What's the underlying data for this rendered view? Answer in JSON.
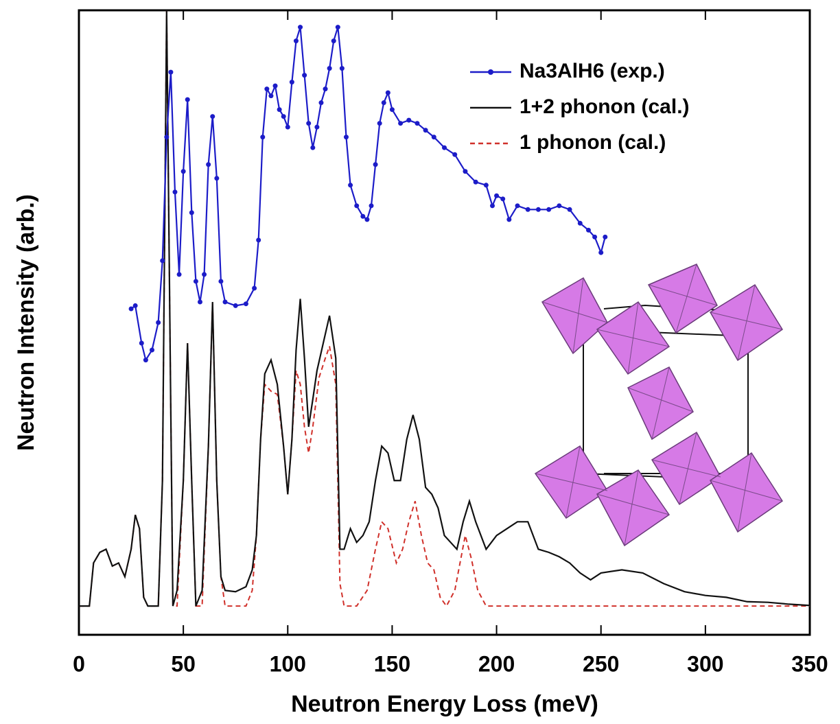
{
  "chart_data": {
    "type": "line",
    "x_label": "Neutron Energy Loss (meV)",
    "y_label": "Neutron Intensity (arb.)",
    "xlim": [
      0,
      350
    ],
    "xticks": [
      0,
      50,
      100,
      150,
      200,
      250,
      300,
      350
    ],
    "ylim": [
      0,
      100
    ],
    "legend": "upper right",
    "series": [
      {
        "name": "Na3AlH6 (exp.)",
        "color": "#1c1cc8",
        "style": "solid",
        "markers": true,
        "x": [
          25,
          27,
          30,
          32,
          35,
          38,
          40,
          42,
          44,
          46,
          48,
          50,
          52,
          54,
          56,
          58,
          60,
          62,
          64,
          66,
          68,
          70,
          75,
          80,
          84,
          86,
          88,
          90,
          92,
          94,
          96,
          98,
          100,
          102,
          104,
          106,
          108,
          110,
          112,
          114,
          116,
          118,
          120,
          122,
          124,
          126,
          128,
          130,
          133,
          136,
          138,
          140,
          142,
          144,
          146,
          148,
          150,
          154,
          158,
          162,
          166,
          170,
          175,
          180,
          185,
          190,
          195,
          198,
          200,
          203,
          206,
          210,
          215,
          220,
          225,
          230,
          235,
          240,
          244,
          247,
          250,
          252
        ],
        "values": [
          52.2,
          52.7,
          46.7,
          44,
          45.6,
          50,
          59.9,
          79.7,
          90.1,
          70.9,
          57.7,
          74.2,
          85.7,
          67.6,
          56.6,
          53.3,
          57.7,
          75.3,
          83,
          73.1,
          56.6,
          53.3,
          52.7,
          53,
          55.5,
          63.2,
          79.7,
          87.4,
          86.3,
          87.9,
          84.1,
          83,
          81.3,
          88.5,
          95.1,
          97.3,
          89.6,
          81.9,
          78,
          81.3,
          85.2,
          87.4,
          90.7,
          95.1,
          97.3,
          90.7,
          79.7,
          72,
          68.7,
          67,
          66.5,
          68.7,
          75.3,
          81.9,
          85.2,
          86.8,
          84.1,
          81.9,
          82.4,
          81.9,
          80.8,
          79.7,
          78,
          76.9,
          74.2,
          72.5,
          72,
          68.7,
          70.3,
          69.8,
          66.5,
          68.7,
          68.1,
          68.1,
          68.1,
          68.7,
          68.1,
          65.9,
          64.8,
          63.7,
          61.2,
          63.7
        ]
      },
      {
        "name": "1+2 phonon (cal.)",
        "color": "#111111",
        "style": "solid",
        "markers": false,
        "x": [
          0,
          5,
          7,
          10,
          13,
          16,
          19,
          22,
          25,
          27,
          29,
          31,
          33,
          38,
          40,
          42,
          44,
          45,
          47,
          50,
          52,
          54,
          56,
          59,
          62,
          64,
          66,
          68,
          70,
          75,
          80,
          83,
          85,
          87,
          89,
          92,
          95,
          98,
          100,
          102,
          104,
          106,
          108,
          110,
          112,
          114,
          117,
          120,
          123,
          125,
          127,
          130,
          133,
          136,
          139,
          142,
          145,
          148,
          151,
          154,
          157,
          160,
          163,
          166,
          169,
          172,
          175,
          178,
          181,
          184,
          187,
          190,
          195,
          200,
          205,
          210,
          215,
          220,
          225,
          230,
          235,
          240,
          245,
          250,
          260,
          270,
          280,
          290,
          300,
          310,
          320,
          330,
          340,
          350
        ],
        "values": [
          4.6,
          4.6,
          11.5,
          13.2,
          13.7,
          11,
          11.5,
          9.3,
          13.7,
          19.2,
          17,
          6,
          4.6,
          4.6,
          24.7,
          100,
          35.7,
          4.6,
          7.1,
          24.7,
          46.7,
          24.7,
          4.6,
          7.1,
          30.2,
          53.3,
          24.7,
          9.3,
          7.1,
          6.9,
          7.7,
          10.4,
          15.9,
          31.3,
          41.8,
          44,
          40.1,
          30.2,
          22.5,
          31.3,
          45.6,
          53.8,
          44.3,
          33.3,
          37.7,
          42.3,
          46.7,
          51.1,
          44.3,
          13.7,
          13.7,
          17,
          14.8,
          15.9,
          18.1,
          24.7,
          30.2,
          29.1,
          24.7,
          24.7,
          31.3,
          35.2,
          31.3,
          23.6,
          22.5,
          20.3,
          15.9,
          14.8,
          13.7,
          18.1,
          21.4,
          18.1,
          13.7,
          15.9,
          17,
          18.1,
          18.1,
          13.7,
          13.2,
          12.5,
          11.5,
          9.9,
          8.8,
          9.9,
          10.4,
          9.9,
          8.2,
          6.9,
          6.3,
          6,
          5.3,
          5.2,
          4.9,
          4.7
        ]
      },
      {
        "name": "1 phonon (cal.)",
        "color": "#d0302a",
        "style": "dashed",
        "markers": false,
        "x": [
          0,
          5,
          7,
          10,
          13,
          16,
          19,
          22,
          25,
          27,
          29,
          31,
          33,
          38,
          40,
          42,
          44,
          45,
          47,
          50,
          52,
          54,
          56,
          59,
          62,
          64,
          66,
          68,
          70,
          75,
          80,
          83,
          85,
          87,
          89,
          92,
          95,
          98,
          100,
          102,
          104,
          106,
          108,
          110,
          112,
          115,
          118,
          120,
          123,
          125,
          127,
          133,
          138,
          142,
          145,
          148,
          152,
          155,
          158,
          161,
          164,
          167,
          170,
          173,
          176,
          180,
          185,
          188,
          191,
          195,
          350
        ],
        "values": [
          4.6,
          4.6,
          11.5,
          13.2,
          13.7,
          11,
          11.5,
          9.3,
          13.7,
          19.2,
          17,
          6,
          4.6,
          4.6,
          24.7,
          100,
          35.7,
          4.6,
          4.6,
          24.7,
          46.7,
          24.7,
          4.6,
          4.6,
          30.2,
          53.3,
          24.7,
          9.3,
          4.6,
          4.6,
          4.6,
          7.1,
          15.9,
          31.3,
          40.1,
          39,
          38.5,
          30.2,
          22.5,
          31.3,
          42.3,
          40.1,
          33.3,
          29.1,
          33.3,
          41.2,
          44.3,
          46.2,
          40.1,
          8.2,
          4.6,
          4.6,
          7.1,
          13.7,
          18.1,
          17,
          11.5,
          13.7,
          18.1,
          21.4,
          15.9,
          11.5,
          10.4,
          6,
          4.6,
          7.1,
          15.9,
          12.1,
          7.1,
          4.6,
          4.6
        ]
      }
    ]
  }
}
